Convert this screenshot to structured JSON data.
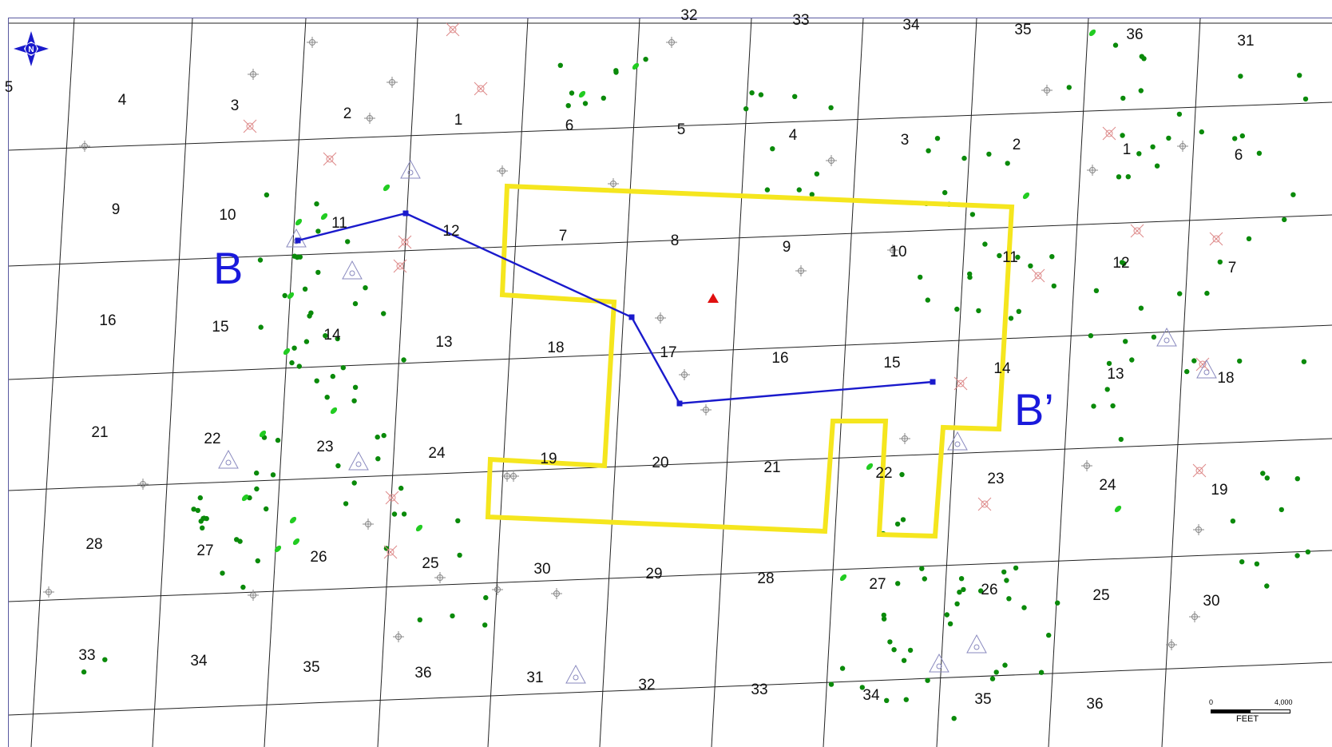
{
  "map": {
    "sections_top_partial": [
      "5",
      "32",
      "33",
      "34",
      "35",
      "36",
      "31"
    ],
    "row1": [
      "4",
      "3",
      "2",
      "1",
      "6",
      "5",
      "4",
      "3",
      "2",
      "1",
      "6"
    ],
    "row2": [
      "9",
      "10",
      "11",
      "12",
      "7",
      "8",
      "9",
      "10",
      "11",
      "12",
      "7"
    ],
    "row3": [
      "16",
      "15",
      "14",
      "13",
      "18",
      "17",
      "16",
      "15",
      "14",
      "13",
      "18"
    ],
    "row4": [
      "21",
      "22",
      "23",
      "24",
      "19",
      "20",
      "21",
      "22",
      "23",
      "24",
      "19"
    ],
    "row5": [
      "28",
      "27",
      "26",
      "25",
      "30",
      "29",
      "28",
      "27",
      "26",
      "25",
      "30"
    ],
    "row6": [
      "33",
      "34",
      "35",
      "36",
      "31",
      "32",
      "33",
      "34",
      "35",
      "36"
    ]
  },
  "cross_section": {
    "start_label": "B",
    "end_label": "B’",
    "line_color": "#1a1acc"
  },
  "outline_color": "#f5e61e",
  "well_color": "#0a8a0a",
  "north_arrow": {
    "letter": "N",
    "icon": "north-arrow-icon"
  },
  "scale": {
    "min": "0",
    "max": "4,000",
    "unit": "FEET"
  }
}
